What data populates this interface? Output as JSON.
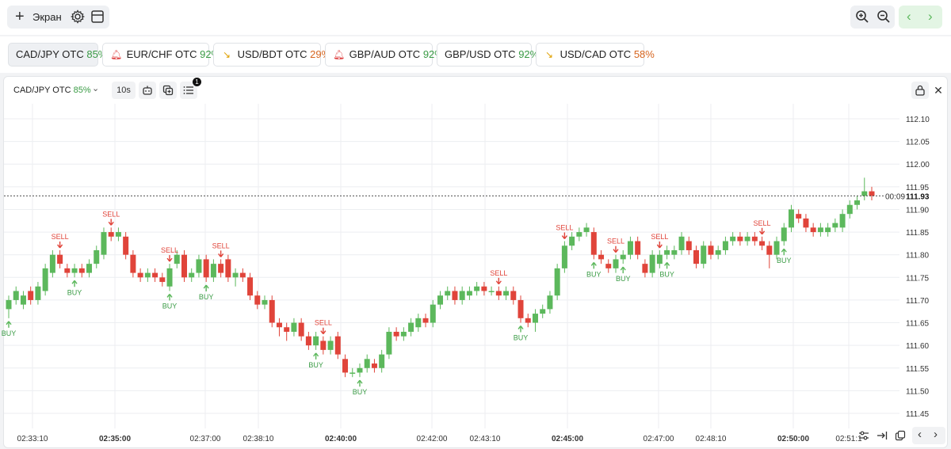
{
  "toolbar": {
    "screen_label": "Экран",
    "add_icon": "plus-icon",
    "settings_icon": "gear-icon",
    "layout_icon": "layout-icon",
    "zoom_in_icon": "zoom-in-icon",
    "zoom_out_icon": "zoom-out-icon",
    "prev_icon": "chevron-left-icon",
    "next_icon": "chevron-right-icon"
  },
  "asset_tabs": [
    {
      "name": "CAD/JPY OTC",
      "payout": "85%",
      "icon": "",
      "active": true,
      "color": "#3a9b45"
    },
    {
      "name": "EUR/CHF OTC",
      "payout": "92%",
      "icon": "bell",
      "active": false,
      "color": "#3a9b45"
    },
    {
      "name": "USD/BDT OTC",
      "payout": "29%",
      "icon": "trend",
      "active": false,
      "color": "#d6651f"
    },
    {
      "name": "GBP/AUD OTC",
      "payout": "92%",
      "icon": "bell",
      "active": false,
      "color": "#3a9b45"
    },
    {
      "name": "GBP/USD OTC",
      "payout": "92%",
      "icon": "",
      "active": false,
      "color": "#3a9b45"
    },
    {
      "name": "USD/CAD OTC",
      "payout": "58%",
      "icon": "trend",
      "active": false,
      "color": "#d6651f"
    }
  ],
  "panel": {
    "symbol": "CAD/JPY OTC",
    "payout": "85%",
    "timeframe": "10s",
    "indicator_badge": "1",
    "current_price": "111.93",
    "countdown": "00:09"
  },
  "chart_data": {
    "type": "candlestick",
    "y_ticks": [
      "112.10",
      "112.05",
      "112.00",
      "111.95",
      "111.90",
      "111.85",
      "111.80",
      "111.75",
      "111.70",
      "111.65",
      "111.60",
      "111.55",
      "111.50",
      "111.45"
    ],
    "x_ticks": [
      {
        "label": "02:33:10",
        "bold": false
      },
      {
        "label": "02:35:00",
        "bold": true
      },
      {
        "label": "02:37:00",
        "bold": false
      },
      {
        "label": "02:38:10",
        "bold": false
      },
      {
        "label": "02:40:00",
        "bold": true
      },
      {
        "label": "02:42:00",
        "bold": false
      },
      {
        "label": "02:43:10",
        "bold": false
      },
      {
        "label": "02:45:00",
        "bold": true
      },
      {
        "label": "02:47:00",
        "bold": false
      },
      {
        "label": "02:48:10",
        "bold": false
      },
      {
        "label": "02:50:00",
        "bold": true
      },
      {
        "label": "02:51:1"
      }
    ],
    "candles": [
      [
        111.68,
        111.7,
        111.66,
        111.71
      ],
      [
        111.7,
        111.72,
        111.69,
        111.73
      ],
      [
        111.69,
        111.71,
        111.68,
        111.72
      ],
      [
        111.72,
        111.7,
        111.69,
        111.73
      ],
      [
        111.7,
        111.73,
        111.69,
        111.74
      ],
      [
        111.72,
        111.77,
        111.71,
        111.78
      ],
      [
        111.76,
        111.8,
        111.75,
        111.81
      ],
      [
        111.8,
        111.78,
        111.77,
        111.81
      ],
      [
        111.77,
        111.76,
        111.75,
        111.78
      ],
      [
        111.76,
        111.77,
        111.75,
        111.78
      ],
      [
        111.77,
        111.76,
        111.75,
        111.78
      ],
      [
        111.76,
        111.78,
        111.75,
        111.79
      ],
      [
        111.78,
        111.81,
        111.77,
        111.82
      ],
      [
        111.8,
        111.85,
        111.79,
        111.86
      ],
      [
        111.85,
        111.84,
        111.83,
        111.86
      ],
      [
        111.84,
        111.85,
        111.83,
        111.86
      ],
      [
        111.84,
        111.8,
        111.79,
        111.85
      ],
      [
        111.8,
        111.76,
        111.75,
        111.81
      ],
      [
        111.76,
        111.75,
        111.74,
        111.77
      ],
      [
        111.75,
        111.76,
        111.74,
        111.77
      ],
      [
        111.76,
        111.75,
        111.74,
        111.77
      ],
      [
        111.75,
        111.74,
        111.73,
        111.76
      ],
      [
        111.73,
        111.77,
        111.72,
        111.78
      ],
      [
        111.78,
        111.8,
        111.77,
        111.81
      ],
      [
        111.8,
        111.75,
        111.74,
        111.81
      ],
      [
        111.75,
        111.76,
        111.74,
        111.77
      ],
      [
        111.76,
        111.79,
        111.75,
        111.8
      ],
      [
        111.79,
        111.75,
        111.74,
        111.8
      ],
      [
        111.75,
        111.78,
        111.74,
        111.79
      ],
      [
        111.78,
        111.76,
        111.75,
        111.79
      ],
      [
        111.79,
        111.75,
        111.74,
        111.8
      ],
      [
        111.75,
        111.76,
        111.73,
        111.77
      ],
      [
        111.76,
        111.75,
        111.74,
        111.77
      ],
      [
        111.75,
        111.71,
        111.7,
        111.76
      ],
      [
        111.71,
        111.69,
        111.68,
        111.72
      ],
      [
        111.69,
        111.7,
        111.68,
        111.71
      ],
      [
        111.7,
        111.65,
        111.64,
        111.71
      ],
      [
        111.65,
        111.64,
        111.62,
        111.66
      ],
      [
        111.64,
        111.63,
        111.61,
        111.65
      ],
      [
        111.63,
        111.65,
        111.62,
        111.66
      ],
      [
        111.65,
        111.62,
        111.61,
        111.66
      ],
      [
        111.62,
        111.6,
        111.59,
        111.63
      ],
      [
        111.6,
        111.62,
        111.59,
        111.63
      ],
      [
        111.61,
        111.59,
        111.58,
        111.62
      ],
      [
        111.59,
        111.61,
        111.58,
        111.62
      ],
      [
        111.62,
        111.58,
        111.57,
        111.63
      ],
      [
        111.57,
        111.54,
        111.53,
        111.58
      ],
      [
        111.54,
        111.54,
        111.53,
        111.55
      ],
      [
        111.54,
        111.55,
        111.53,
        111.56
      ],
      [
        111.55,
        111.57,
        111.54,
        111.58
      ],
      [
        111.56,
        111.55,
        111.54,
        111.57
      ],
      [
        111.55,
        111.58,
        111.54,
        111.59
      ],
      [
        111.58,
        111.63,
        111.57,
        111.64
      ],
      [
        111.63,
        111.62,
        111.61,
        111.64
      ],
      [
        111.62,
        111.63,
        111.61,
        111.64
      ],
      [
        111.63,
        111.65,
        111.62,
        111.66
      ],
      [
        111.64,
        111.66,
        111.63,
        111.67
      ],
      [
        111.66,
        111.65,
        111.64,
        111.67
      ],
      [
        111.65,
        111.69,
        111.64,
        111.7
      ],
      [
        111.69,
        111.71,
        111.68,
        111.72
      ],
      [
        111.71,
        111.72,
        111.7,
        111.73
      ],
      [
        111.72,
        111.7,
        111.69,
        111.73
      ],
      [
        111.7,
        111.72,
        111.69,
        111.73
      ],
      [
        111.71,
        111.72,
        111.7,
        111.73
      ],
      [
        111.72,
        111.73,
        111.71,
        111.74
      ],
      [
        111.73,
        111.72,
        111.71,
        111.74
      ],
      [
        111.72,
        111.72,
        111.71,
        111.73
      ],
      [
        111.72,
        111.71,
        111.7,
        111.73
      ],
      [
        111.71,
        111.72,
        111.7,
        111.73
      ],
      [
        111.72,
        111.7,
        111.69,
        111.73
      ],
      [
        111.7,
        111.66,
        111.65,
        111.71
      ],
      [
        111.66,
        111.65,
        111.64,
        111.67
      ],
      [
        111.65,
        111.67,
        111.63,
        111.68
      ],
      [
        111.67,
        111.68,
        111.66,
        111.69
      ],
      [
        111.68,
        111.71,
        111.67,
        111.72
      ],
      [
        111.71,
        111.77,
        111.7,
        111.78
      ],
      [
        111.77,
        111.82,
        111.76,
        111.83
      ],
      [
        111.82,
        111.84,
        111.81,
        111.85
      ],
      [
        111.84,
        111.85,
        111.83,
        111.86
      ],
      [
        111.85,
        111.86,
        111.84,
        111.87
      ],
      [
        111.85,
        111.8,
        111.79,
        111.86
      ],
      [
        111.8,
        111.79,
        111.78,
        111.81
      ],
      [
        111.78,
        111.77,
        111.76,
        111.79
      ],
      [
        111.77,
        111.79,
        111.76,
        111.8
      ],
      [
        111.79,
        111.8,
        111.78,
        111.81
      ],
      [
        111.8,
        111.83,
        111.79,
        111.84
      ],
      [
        111.83,
        111.8,
        111.79,
        111.84
      ],
      [
        111.78,
        111.76,
        111.75,
        111.79
      ],
      [
        111.76,
        111.8,
        111.75,
        111.81
      ],
      [
        111.78,
        111.8,
        111.77,
        111.81
      ],
      [
        111.8,
        111.81,
        111.79,
        111.82
      ],
      [
        111.8,
        111.81,
        111.79,
        111.82
      ],
      [
        111.81,
        111.84,
        111.8,
        111.85
      ],
      [
        111.83,
        111.81,
        111.8,
        111.84
      ],
      [
        111.81,
        111.78,
        111.77,
        111.82
      ],
      [
        111.78,
        111.82,
        111.77,
        111.83
      ],
      [
        111.82,
        111.8,
        111.79,
        111.83
      ],
      [
        111.8,
        111.81,
        111.79,
        111.82
      ],
      [
        111.81,
        111.83,
        111.8,
        111.84
      ],
      [
        111.83,
        111.84,
        111.82,
        111.85
      ],
      [
        111.84,
        111.83,
        111.82,
        111.85
      ],
      [
        111.83,
        111.84,
        111.82,
        111.85
      ],
      [
        111.84,
        111.83,
        111.82,
        111.85
      ],
      [
        111.83,
        111.82,
        111.81,
        111.84
      ],
      [
        111.82,
        111.8,
        111.77,
        111.83
      ],
      [
        111.8,
        111.83,
        111.79,
        111.84
      ],
      [
        111.83,
        111.86,
        111.82,
        111.87
      ],
      [
        111.86,
        111.9,
        111.85,
        111.91
      ],
      [
        111.89,
        111.88,
        111.87,
        111.9
      ],
      [
        111.88,
        111.86,
        111.85,
        111.89
      ],
      [
        111.86,
        111.85,
        111.84,
        111.87
      ],
      [
        111.85,
        111.86,
        111.84,
        111.87
      ],
      [
        111.85,
        111.86,
        111.84,
        111.87
      ],
      [
        111.86,
        111.87,
        111.85,
        111.88
      ],
      [
        111.86,
        111.89,
        111.85,
        111.9
      ],
      [
        111.89,
        111.91,
        111.88,
        111.92
      ],
      [
        111.91,
        111.92,
        111.9,
        111.93
      ],
      [
        111.93,
        111.94,
        111.92,
        111.97
      ],
      [
        111.94,
        111.93,
        111.92,
        111.95
      ]
    ],
    "annotations": [
      {
        "type": "BUY",
        "candle": 0
      },
      {
        "type": "SELL",
        "candle": 7
      },
      {
        "type": "BUY",
        "candle": 9
      },
      {
        "type": "SELL",
        "candle": 14
      },
      {
        "type": "SELL",
        "candle": 22
      },
      {
        "type": "BUY",
        "candle": 22
      },
      {
        "type": "BUY",
        "candle": 27
      },
      {
        "type": "SELL",
        "candle": 29
      },
      {
        "type": "SELL",
        "candle": 43
      },
      {
        "type": "BUY",
        "candle": 42
      },
      {
        "type": "BUY",
        "candle": 48
      },
      {
        "type": "SELL",
        "candle": 67
      },
      {
        "type": "BUY",
        "candle": 70
      },
      {
        "type": "SELL",
        "candle": 76
      },
      {
        "type": "BUY",
        "candle": 80
      },
      {
        "type": "SELL",
        "candle": 83
      },
      {
        "type": "BUY",
        "candle": 84
      },
      {
        "type": "SELL",
        "candle": 89
      },
      {
        "type": "BUY",
        "candle": 90
      },
      {
        "type": "SELL",
        "candle": 103
      },
      {
        "type": "BUY",
        "candle": 106
      }
    ]
  },
  "colors": {
    "up": "#5cb85c",
    "down": "#e0443a",
    "grid": "#eceef1",
    "price_line": "#333333"
  }
}
